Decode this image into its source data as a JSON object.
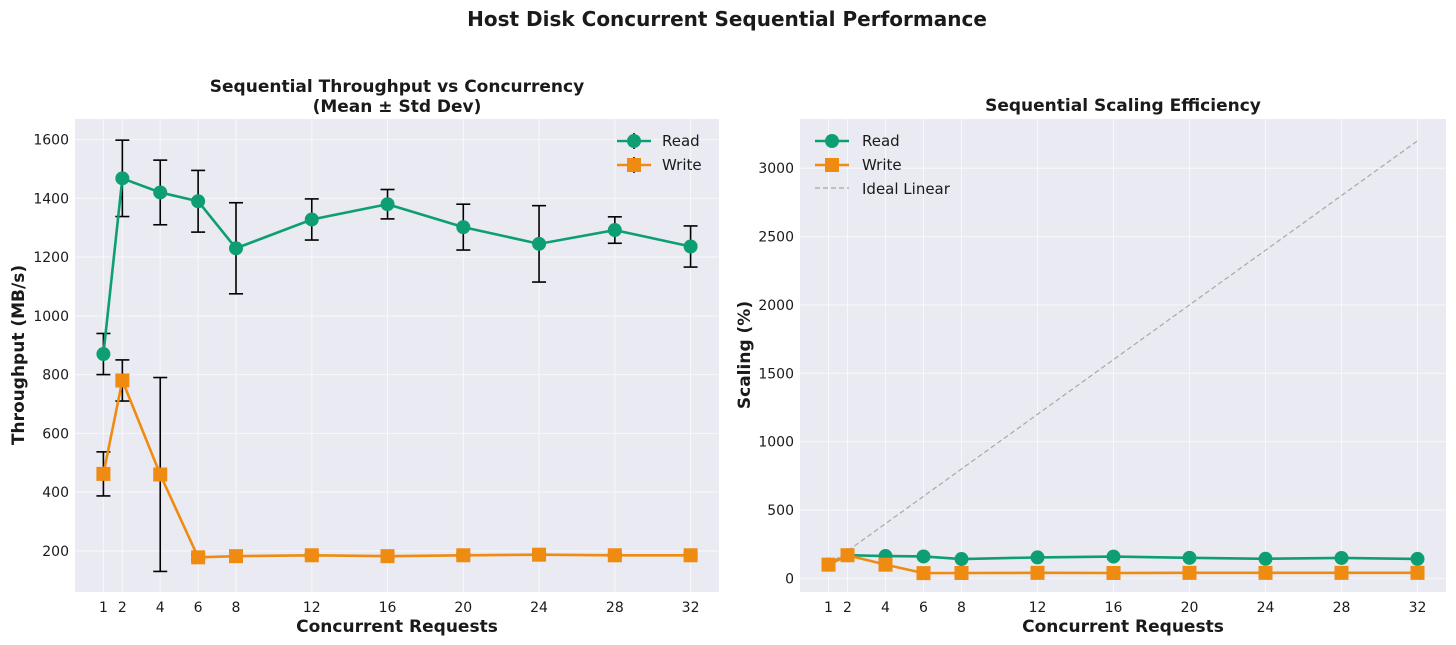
{
  "figure_title": "Host Disk Concurrent Sequential Performance",
  "colors": {
    "read": "#0e9e73",
    "write": "#ef8b10",
    "ideal": "#a8a8a8",
    "plot_bg": "#eaeaf2",
    "grid": "#f8f8fb",
    "errorbar": "#000000"
  },
  "chart_data": [
    {
      "type": "line",
      "title_line1": "Sequential Throughput vs Concurrency",
      "title_line2": "(Mean ± Std Dev)",
      "xlabel": "Concurrent Requests",
      "ylabel": "Throughput (MB/s)",
      "xlim": [
        -0.5,
        33.5
      ],
      "ylim": [
        60,
        1670
      ],
      "xticks": [
        1,
        2,
        4,
        6,
        8,
        12,
        16,
        20,
        24,
        28,
        32
      ],
      "yticks": [
        200,
        400,
        600,
        800,
        1000,
        1200,
        1400,
        1600
      ],
      "x": [
        1,
        2,
        4,
        6,
        8,
        12,
        16,
        20,
        24,
        28,
        32
      ],
      "legend_position": "top-right",
      "series": [
        {
          "name": "Read",
          "marker": "circle",
          "values": [
            870,
            1468,
            1420,
            1390,
            1230,
            1328,
            1380,
            1302,
            1245,
            1292,
            1236
          ],
          "std": [
            70,
            130,
            110,
            105,
            155,
            70,
            50,
            78,
            130,
            45,
            70
          ]
        },
        {
          "name": "Write",
          "marker": "square",
          "values": [
            462,
            780,
            460,
            178,
            182,
            185,
            182,
            185,
            187,
            185,
            185
          ],
          "std": [
            75,
            70,
            330,
            8,
            8,
            5,
            5,
            5,
            5,
            5,
            5
          ]
        }
      ]
    },
    {
      "type": "line",
      "title_line1": "Sequential Scaling Efficiency",
      "xlabel": "Concurrent Requests",
      "ylabel": "Scaling (%)",
      "xlim": [
        -0.5,
        33.5
      ],
      "ylim": [
        -100,
        3360
      ],
      "xticks": [
        1,
        2,
        4,
        6,
        8,
        12,
        16,
        20,
        24,
        28,
        32
      ],
      "yticks": [
        0,
        500,
        1000,
        1500,
        2000,
        2500,
        3000
      ],
      "x": [
        1,
        2,
        4,
        6,
        8,
        12,
        16,
        20,
        24,
        28,
        32
      ],
      "legend_position": "top-left",
      "series": [
        {
          "name": "Read",
          "marker": "circle",
          "values": [
            100,
            169,
            163,
            160,
            141,
            153,
            159,
            150,
            143,
            149,
            142
          ]
        },
        {
          "name": "Write",
          "marker": "square",
          "values": [
            100,
            169,
            100,
            38,
            39,
            40,
            39,
            40,
            40,
            40,
            40
          ]
        },
        {
          "name": "Ideal Linear",
          "marker": "none",
          "dashed": true,
          "values": [
            100,
            200,
            400,
            600,
            800,
            1200,
            1600,
            2000,
            2400,
            2800,
            3200
          ]
        }
      ]
    }
  ]
}
